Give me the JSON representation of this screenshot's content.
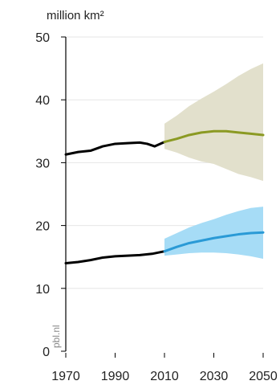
{
  "chart_data": {
    "type": "line",
    "unit_label": "million km²",
    "source": "pbl.nl",
    "xlim": [
      1970,
      2050
    ],
    "ylim": [
      0,
      50
    ],
    "x_ticks": [
      1970,
      1990,
      2010,
      2030,
      2050
    ],
    "y_ticks": [
      0,
      10,
      20,
      30,
      40,
      50
    ],
    "grid": true,
    "series": [
      {
        "kind": "history",
        "color": "#000000",
        "x": [
          1970,
          1975,
          1980,
          1985,
          1990,
          1995,
          2000,
          2003,
          2006,
          2010
        ],
        "y": [
          31.3,
          31.7,
          31.9,
          32.6,
          33.0,
          33.1,
          33.2,
          33.0,
          32.6,
          33.3
        ]
      },
      {
        "kind": "projection",
        "color": "#8b9a23",
        "band_color": "#e2e0cc",
        "x": [
          2010,
          2015,
          2020,
          2025,
          2030,
          2035,
          2040,
          2045,
          2050
        ],
        "y": [
          33.3,
          33.8,
          34.4,
          34.8,
          35.0,
          35.0,
          34.8,
          34.6,
          34.4
        ],
        "upper": [
          36.2,
          37.5,
          39.0,
          40.2,
          41.3,
          42.5,
          43.8,
          44.9,
          45.8
        ],
        "lower": [
          32.2,
          31.6,
          30.8,
          30.2,
          29.8,
          29.0,
          28.2,
          27.7,
          27.1
        ]
      },
      {
        "kind": "history",
        "color": "#000000",
        "x": [
          1970,
          1975,
          1980,
          1985,
          1990,
          1995,
          2000,
          2005,
          2010
        ],
        "y": [
          14.0,
          14.2,
          14.5,
          14.9,
          15.1,
          15.2,
          15.3,
          15.5,
          15.9
        ]
      },
      {
        "kind": "projection",
        "color": "#2a9ad6",
        "band_color": "#a6dcf6",
        "x": [
          2010,
          2015,
          2020,
          2025,
          2030,
          2035,
          2040,
          2045,
          2050
        ],
        "y": [
          15.9,
          16.6,
          17.2,
          17.6,
          18.0,
          18.3,
          18.6,
          18.8,
          18.9
        ],
        "upper": [
          17.9,
          18.8,
          19.7,
          20.4,
          21.0,
          21.7,
          22.3,
          22.8,
          23.0
        ],
        "lower": [
          15.2,
          15.4,
          15.6,
          15.7,
          15.7,
          15.6,
          15.4,
          15.1,
          14.7
        ]
      }
    ]
  }
}
